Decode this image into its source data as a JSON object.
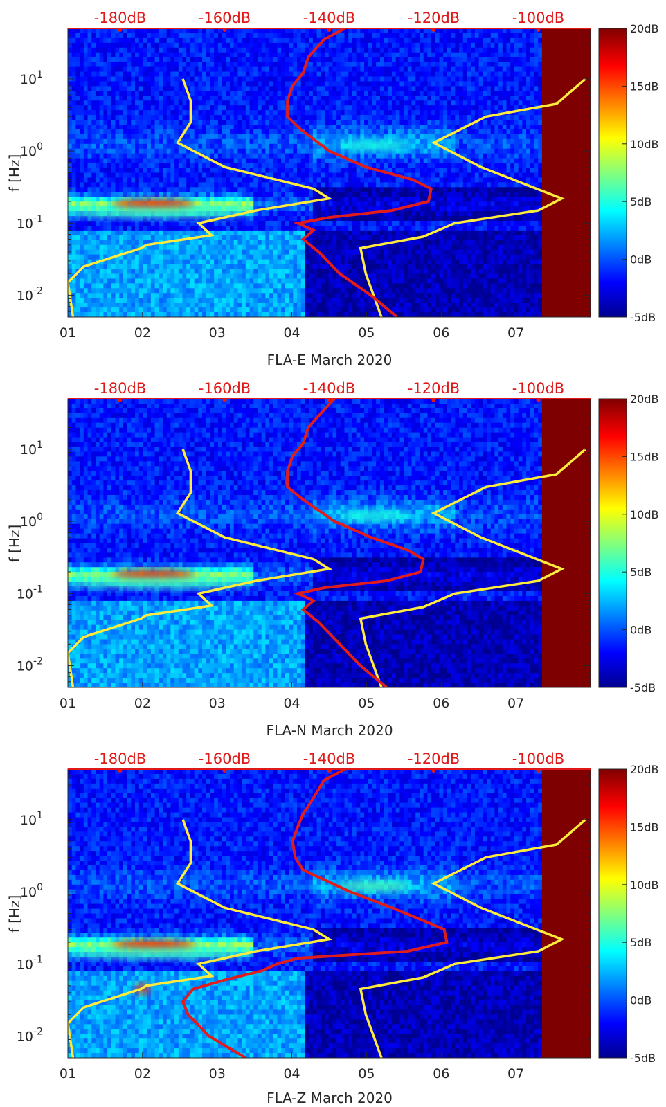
{
  "chart_data": {
    "type": "heatmap",
    "shared": {
      "x_tick_labels": [
        "01",
        "02",
        "03",
        "04",
        "05",
        "06",
        "07"
      ],
      "x_range_days": [
        1,
        8
      ],
      "no_data_from_day": 7.35,
      "y_label": "f [Hz]",
      "y_scale": "log",
      "y_range_hz": [
        0.005,
        50
      ],
      "y_ticks": [
        {
          "value": 0.01,
          "base": "10",
          "exp": "-2"
        },
        {
          "value": 0.1,
          "base": "10",
          "exp": "-1"
        },
        {
          "value": 1,
          "base": "10",
          "exp": "0"
        },
        {
          "value": 10,
          "base": "10",
          "exp": "1"
        }
      ],
      "top_axis_labels": [
        "-180dB",
        "-160dB",
        "-140dB",
        "-120dB",
        "-100dB"
      ],
      "top_axis_range_db": [
        -190,
        -90
      ],
      "colorbar_labels": [
        "20dB",
        "15dB",
        "10dB",
        "5dB",
        "0dB",
        "-5dB"
      ],
      "colorbar_range_db": [
        -5,
        20
      ],
      "colormap": [
        "#00008f",
        "#0000ff",
        "#00ffff",
        "#ffff00",
        "#ff0000",
        "#800000"
      ],
      "noise_model_color": "#ffeb3b",
      "psd_color": "#e01c1c",
      "low_noise_model_db": [
        {
          "f": 10,
          "db": -168
        },
        {
          "f": 5,
          "db": -166.5
        },
        {
          "f": 2.5,
          "db": -166.5
        },
        {
          "f": 1.3,
          "db": -169
        },
        {
          "f": 0.6,
          "db": -160
        },
        {
          "f": 0.3,
          "db": -143
        },
        {
          "f": 0.22,
          "db": -140
        },
        {
          "f": 0.15,
          "db": -154
        },
        {
          "f": 0.1,
          "db": -165
        },
        {
          "f": 0.068,
          "db": -162.5
        },
        {
          "f": 0.05,
          "db": -175
        },
        {
          "f": 0.045,
          "db": -176
        },
        {
          "f": 0.025,
          "db": -187
        },
        {
          "f": 0.015,
          "db": -190
        },
        {
          "f": 0.005,
          "db": -189
        }
      ],
      "high_noise_model_db": [
        {
          "f": 10,
          "db": -91
        },
        {
          "f": 4.5,
          "db": -96.5
        },
        {
          "f": 3,
          "db": -110
        },
        {
          "f": 1.3,
          "db": -120
        },
        {
          "f": 0.6,
          "db": -111
        },
        {
          "f": 0.22,
          "db": -95.5
        },
        {
          "f": 0.15,
          "db": -100
        },
        {
          "f": 0.1,
          "db": -116
        },
        {
          "f": 0.065,
          "db": -122
        },
        {
          "f": 0.045,
          "db": -134
        },
        {
          "f": 0.02,
          "db": -133
        },
        {
          "f": 0.005,
          "db": -130
        }
      ]
    },
    "panels": [
      {
        "component": "FLA-E",
        "xlabel": "FLA-E March 2020",
        "title": "",
        "psd_curve_db": [
          {
            "f": 50,
            "db": -137
          },
          {
            "f": 35,
            "db": -141
          },
          {
            "f": 20,
            "db": -144
          },
          {
            "f": 12,
            "db": -145
          },
          {
            "f": 8,
            "db": -147
          },
          {
            "f": 5,
            "db": -148
          },
          {
            "f": 3,
            "db": -148
          },
          {
            "f": 2,
            "db": -145.5
          },
          {
            "f": 1,
            "db": -140
          },
          {
            "f": 0.6,
            "db": -133
          },
          {
            "f": 0.4,
            "db": -124
          },
          {
            "f": 0.3,
            "db": -120.5
          },
          {
            "f": 0.2,
            "db": -121
          },
          {
            "f": 0.15,
            "db": -128
          },
          {
            "f": 0.12,
            "db": -140
          },
          {
            "f": 0.1,
            "db": -146
          },
          {
            "f": 0.08,
            "db": -143
          },
          {
            "f": 0.06,
            "db": -145
          },
          {
            "f": 0.04,
            "db": -142
          },
          {
            "f": 0.02,
            "db": -138
          },
          {
            "f": 0.01,
            "db": -132
          },
          {
            "f": 0.005,
            "db": -127
          }
        ],
        "features": [
          {
            "f": 0.18,
            "day_from": 1.6,
            "day_to": 2.7,
            "level_db": 17
          },
          {
            "f": 0.14,
            "day_from": 1.0,
            "day_to": 3.5,
            "level_db": 6
          },
          {
            "f": 1.2,
            "day_from": 4.6,
            "day_to": 5.6,
            "level_db": 5
          }
        ]
      },
      {
        "component": "FLA-N",
        "xlabel": "FLA-N March 2020",
        "title": "",
        "psd_curve_db": [
          {
            "f": 50,
            "db": -139
          },
          {
            "f": 35,
            "db": -141
          },
          {
            "f": 20,
            "db": -144
          },
          {
            "f": 12,
            "db": -145
          },
          {
            "f": 8,
            "db": -147
          },
          {
            "f": 5,
            "db": -148
          },
          {
            "f": 3,
            "db": -148
          },
          {
            "f": 2,
            "db": -145
          },
          {
            "f": 1,
            "db": -139
          },
          {
            "f": 0.6,
            "db": -132
          },
          {
            "f": 0.4,
            "db": -125
          },
          {
            "f": 0.3,
            "db": -122
          },
          {
            "f": 0.2,
            "db": -122.5
          },
          {
            "f": 0.15,
            "db": -129
          },
          {
            "f": 0.12,
            "db": -141
          },
          {
            "f": 0.1,
            "db": -146
          },
          {
            "f": 0.08,
            "db": -143
          },
          {
            "f": 0.06,
            "db": -145
          },
          {
            "f": 0.04,
            "db": -142
          },
          {
            "f": 0.02,
            "db": -138
          },
          {
            "f": 0.01,
            "db": -134
          },
          {
            "f": 0.005,
            "db": -129
          }
        ],
        "features": [
          {
            "f": 0.18,
            "day_from": 1.6,
            "day_to": 2.7,
            "level_db": 17
          },
          {
            "f": 0.14,
            "day_from": 1.0,
            "day_to": 3.5,
            "level_db": 6
          },
          {
            "f": 1.2,
            "day_from": 4.6,
            "day_to": 5.6,
            "level_db": 5
          }
        ]
      },
      {
        "component": "FLA-Z",
        "xlabel": "FLA-Z March 2020",
        "title": "",
        "psd_curve_db": [
          {
            "f": 50,
            "db": -137
          },
          {
            "f": 35,
            "db": -141
          },
          {
            "f": 20,
            "db": -143
          },
          {
            "f": 12,
            "db": -145
          },
          {
            "f": 8,
            "db": -146
          },
          {
            "f": 5,
            "db": -147
          },
          {
            "f": 3,
            "db": -146.5
          },
          {
            "f": 2,
            "db": -145
          },
          {
            "f": 1,
            "db": -136
          },
          {
            "f": 0.6,
            "db": -128
          },
          {
            "f": 0.4,
            "db": -122
          },
          {
            "f": 0.3,
            "db": -118
          },
          {
            "f": 0.2,
            "db": -117.5
          },
          {
            "f": 0.15,
            "db": -125
          },
          {
            "f": 0.12,
            "db": -146
          },
          {
            "f": 0.1,
            "db": -150
          },
          {
            "f": 0.08,
            "db": -153
          },
          {
            "f": 0.06,
            "db": -160
          },
          {
            "f": 0.045,
            "db": -166
          },
          {
            "f": 0.03,
            "db": -168
          },
          {
            "f": 0.02,
            "db": -167
          },
          {
            "f": 0.01,
            "db": -163
          },
          {
            "f": 0.005,
            "db": -156
          }
        ],
        "features": [
          {
            "f": 0.18,
            "day_from": 1.6,
            "day_to": 2.7,
            "level_db": 17
          },
          {
            "f": 0.14,
            "day_from": 1.0,
            "day_to": 3.5,
            "level_db": 6
          },
          {
            "f": 1.2,
            "day_from": 4.6,
            "day_to": 5.6,
            "level_db": 6
          },
          {
            "f": 0.045,
            "day_from": 1.9,
            "day_to": 2.1,
            "level_db": 15
          }
        ]
      }
    ]
  }
}
